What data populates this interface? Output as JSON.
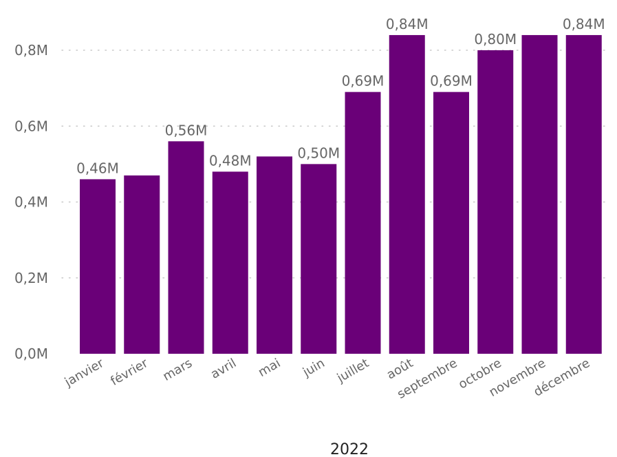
{
  "chart_data": {
    "type": "bar",
    "categories": [
      "janvier",
      "février",
      "mars",
      "avril",
      "mai",
      "juin",
      "juillet",
      "août",
      "septembre",
      "octobre",
      "novembre",
      "décembre"
    ],
    "values": [
      0.46,
      0.47,
      0.56,
      0.48,
      0.52,
      0.5,
      0.69,
      0.84,
      0.69,
      0.8,
      0.84,
      0.84
    ],
    "data_labels": [
      "0,46M",
      "",
      "0,56M",
      "0,48M",
      "",
      "0,50M",
      "0,69M",
      "0,84M",
      "0,69M",
      "0,80M",
      "",
      "0,84M"
    ],
    "y_ticks": [
      {
        "value": 0.0,
        "label": "0,0M"
      },
      {
        "value": 0.2,
        "label": "0,2M"
      },
      {
        "value": 0.4,
        "label": "0,4M"
      },
      {
        "value": 0.6,
        "label": "0,6M"
      },
      {
        "value": 0.8,
        "label": "0,8M"
      }
    ],
    "ylim": [
      0,
      0.9
    ],
    "xlabel": "2022",
    "ylabel": "",
    "title": "",
    "grid": true,
    "bar_color": "#6A0078"
  }
}
